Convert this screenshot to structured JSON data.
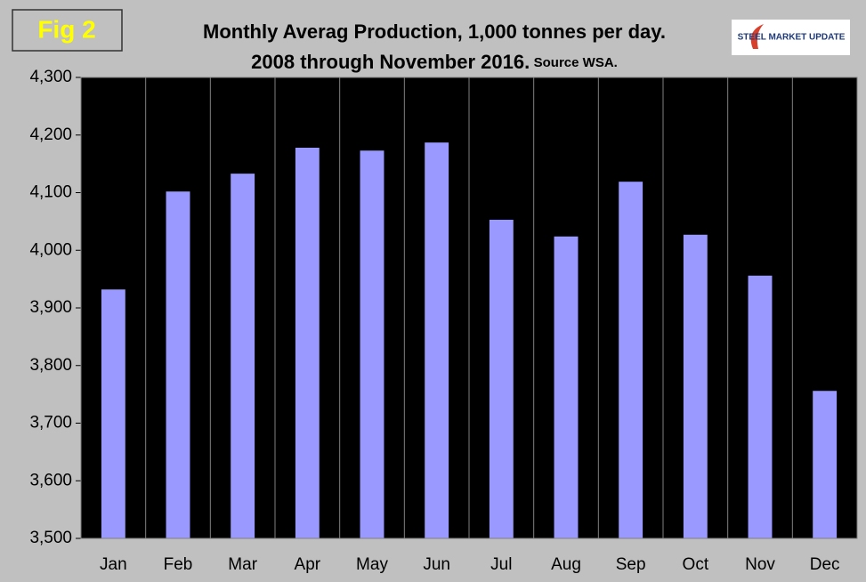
{
  "chart_data": {
    "type": "bar",
    "figure_label": "Fig 2",
    "title": "Monthly Averag Production, 1,000 tonnes per day.",
    "subtitle": "2008 through November 2016.",
    "source": "Source WSA.",
    "logo": "STEEL MARKET UPDATE",
    "categories": [
      "Jan",
      "Feb",
      "Mar",
      "Apr",
      "May",
      "Jun",
      "Jul",
      "Aug",
      "Sep",
      "Oct",
      "Nov",
      "Dec"
    ],
    "values": [
      3932,
      4102,
      4133,
      4178,
      4173,
      4187,
      4053,
      4024,
      4119,
      4027,
      3956,
      3756
    ],
    "color": "#9999ff",
    "ylim": [
      3500,
      4300
    ],
    "yticks": [
      {
        "value": 3500,
        "label": "3,500"
      },
      {
        "value": 3600,
        "label": "3,600"
      },
      {
        "value": 3700,
        "label": "3,700"
      },
      {
        "value": 3800,
        "label": "3,800"
      },
      {
        "value": 3900,
        "label": "3,900"
      },
      {
        "value": 4000,
        "label": "4,000"
      },
      {
        "value": 4100,
        "label": "4,100"
      },
      {
        "value": 4200,
        "label": "4,200"
      },
      {
        "value": 4300,
        "label": "4,300"
      }
    ],
    "grid": true
  }
}
